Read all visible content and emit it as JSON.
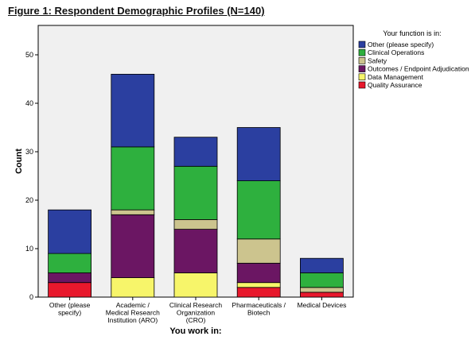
{
  "figure_title": "Figure 1: Respondent Demographic Profiles (N=140)",
  "chart_data": {
    "type": "bar",
    "stacked": true,
    "xlabel": "You work in:",
    "ylabel": "Count",
    "ylim": [
      0,
      55
    ],
    "yticks": [
      0,
      10,
      20,
      30,
      40,
      50
    ],
    "grid": false,
    "legend_title": "Your function is in:",
    "legend_position": "right",
    "categories": [
      [
        "Other (please",
        "specify)"
      ],
      [
        "Academic /",
        "Medical Research",
        "Institution (ARO)"
      ],
      [
        "Clinical Research",
        "Organization",
        "(CRO)"
      ],
      [
        "Pharmaceuticals /",
        "Biotech"
      ],
      [
        "Medical Devices"
      ]
    ],
    "series": [
      {
        "name": "Quality Assurance",
        "color": "#e8182c",
        "values": [
          3,
          0,
          0,
          2,
          1
        ]
      },
      {
        "name": "Data Management",
        "color": "#f7f56a",
        "values": [
          0,
          4,
          5,
          1,
          0
        ]
      },
      {
        "name": "Outcomes / Endpoint Adjudication",
        "color": "#6b1663",
        "values": [
          2,
          13,
          9,
          4,
          0
        ]
      },
      {
        "name": "Safety",
        "color": "#ccc48e",
        "values": [
          0,
          1,
          2,
          5,
          1
        ]
      },
      {
        "name": "Clinical Operations",
        "color": "#2eb03e",
        "values": [
          4,
          13,
          11,
          12,
          3
        ]
      },
      {
        "name": "Other (please specify)",
        "color": "#2b3fa0",
        "values": [
          9,
          15,
          6,
          11,
          3
        ]
      }
    ]
  }
}
